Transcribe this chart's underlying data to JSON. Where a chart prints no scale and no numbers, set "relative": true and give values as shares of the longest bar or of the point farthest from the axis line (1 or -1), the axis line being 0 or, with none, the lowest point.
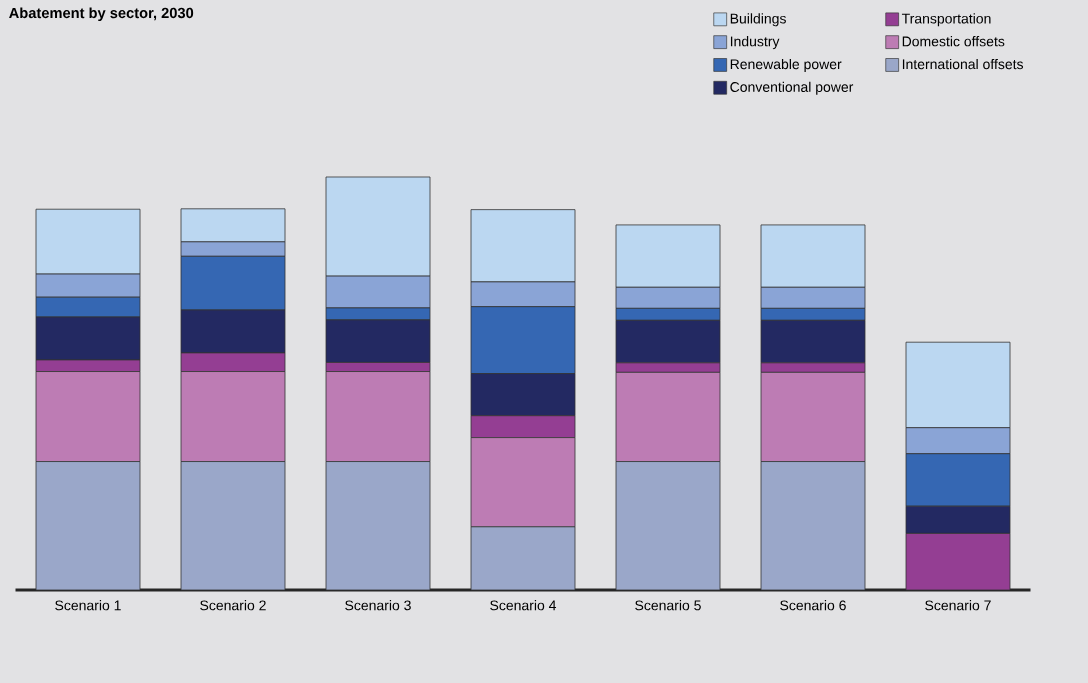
{
  "chart_data": {
    "type": "bar",
    "title": "Abatement by sector, 2030",
    "stacked": true,
    "relative": true,
    "legend": "top right",
    "categories": [
      "Scenario 1",
      "Scenario 2",
      "Scenario 3",
      "Scenario 4",
      "Scenario 5",
      "Scenario 6",
      "Scenario 7"
    ],
    "series": [
      {
        "name": "International offsets",
        "color": "#9aa7c9",
        "values": [
          0.311,
          0.311,
          0.311,
          0.153,
          0.311,
          0.311,
          0
        ]
      },
      {
        "name": "Domestic offsets",
        "color": "#bd7cb4",
        "values": [
          0.218,
          0.218,
          0.218,
          0.216,
          0.216,
          0.216,
          0
        ]
      },
      {
        "name": "Transportation",
        "color": "#943e93",
        "values": [
          0.028,
          0.045,
          0.022,
          0.053,
          0.023,
          0.023,
          0.137
        ]
      },
      {
        "name": "Conventional power",
        "color": "#232962",
        "values": [
          0.104,
          0.104,
          0.103,
          0.102,
          0.103,
          0.103,
          0.066
        ]
      },
      {
        "name": "Renewable power",
        "color": "#3567b3",
        "values": [
          0.048,
          0.13,
          0.029,
          0.162,
          0.029,
          0.029,
          0.127
        ]
      },
      {
        "name": "Industry",
        "color": "#8aa4d6",
        "values": [
          0.056,
          0.035,
          0.077,
          0.06,
          0.051,
          0.051,
          0.063
        ]
      },
      {
        "name": "Buildings",
        "color": "#bbd7f1",
        "values": [
          0.157,
          0.08,
          0.24,
          0.175,
          0.151,
          0.151,
          0.207
        ]
      }
    ]
  }
}
